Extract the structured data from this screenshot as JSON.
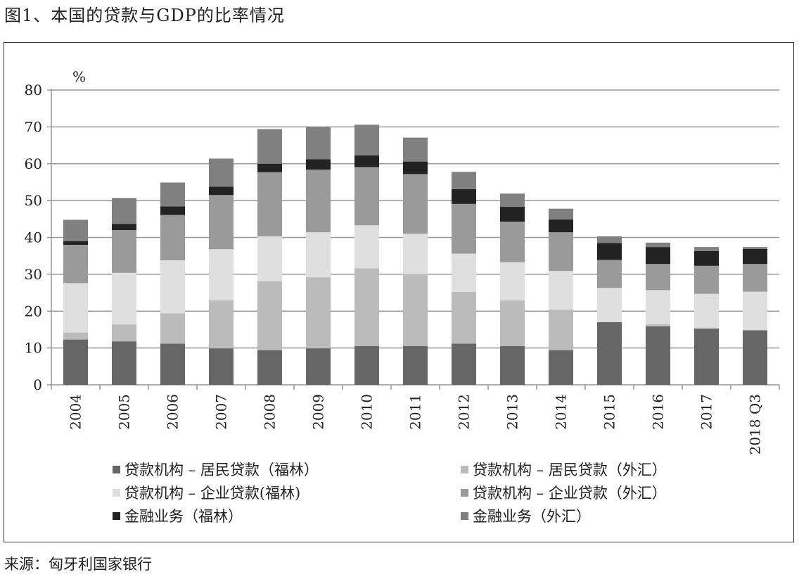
{
  "title": "图1、本国的贷款与GDP的比率情况",
  "source": "来源：匈牙利国家银行",
  "chart_data": {
    "type": "bar",
    "stacked": true,
    "title": "图1、本国的贷款与GDP的比率情况",
    "ylabel": "%",
    "ylim": [
      0,
      80
    ],
    "yticks": [
      0,
      10,
      20,
      30,
      40,
      50,
      60,
      70,
      80
    ],
    "grid": true,
    "legend_position": "bottom",
    "categories": [
      "2004",
      "2005",
      "2006",
      "2007",
      "2008",
      "2009",
      "2010",
      "2011",
      "2012",
      "2013",
      "2014",
      "2015",
      "2016",
      "2017",
      "2018 Q3"
    ],
    "series": [
      {
        "name": "贷款机构 – 居民贷款（福林）",
        "color": "#666666",
        "values": [
          12.3,
          11.8,
          11.2,
          9.9,
          9.4,
          9.9,
          10.5,
          10.5,
          11.2,
          10.5,
          9.4,
          17.0,
          15.9,
          15.3,
          14.8
        ]
      },
      {
        "name": "贷款机构 – 居民贷款（外汇）",
        "color": "#bbbbbb",
        "values": [
          1.9,
          4.6,
          8.2,
          13.0,
          18.7,
          19.3,
          21.1,
          19.5,
          14.0,
          12.4,
          11.0,
          0.0,
          0.5,
          0.0,
          0.0
        ]
      },
      {
        "name": "贷款机构 – 企业贷款(福林)",
        "color": "#dfdfdf",
        "values": [
          13.4,
          14.0,
          14.4,
          13.9,
          12.2,
          12.2,
          11.7,
          11.0,
          10.4,
          10.4,
          10.5,
          9.3,
          9.3,
          9.4,
          10.5
        ]
      },
      {
        "name": "贷款机构 – 企业贷款（外汇）",
        "color": "#9a9a9a",
        "values": [
          10.4,
          11.6,
          12.3,
          14.7,
          17.4,
          17.0,
          15.8,
          16.2,
          13.5,
          11.0,
          10.5,
          7.6,
          7.1,
          7.6,
          7.5
        ]
      },
      {
        "name": "金融业务（福林）",
        "color": "#222222",
        "values": [
          1.0,
          1.7,
          2.3,
          2.3,
          2.3,
          2.8,
          3.2,
          3.4,
          4.0,
          4.0,
          3.5,
          4.6,
          4.6,
          4.0,
          4.1
        ]
      },
      {
        "name": "金融业务（外汇）",
        "color": "#808080",
        "values": [
          5.8,
          7.0,
          6.5,
          7.6,
          9.4,
          8.8,
          8.3,
          6.5,
          4.7,
          3.6,
          2.9,
          1.8,
          1.2,
          1.1,
          0.5
        ]
      }
    ]
  }
}
